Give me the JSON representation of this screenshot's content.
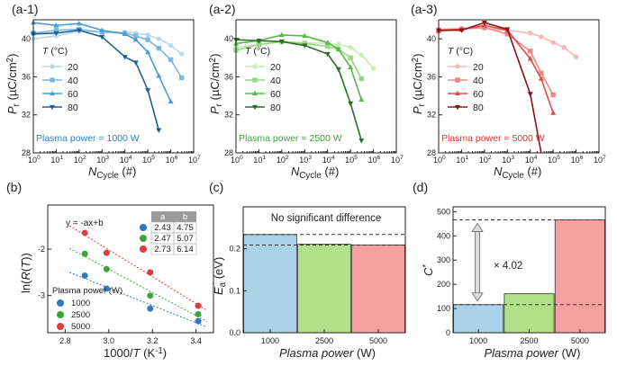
{
  "chart_data": [
    {
      "id": "a1",
      "type": "line",
      "label": "(a-1)",
      "xlabel": "N_Cycle (#)",
      "ylabel": "P_r (µC/cm²)",
      "xscale": "log",
      "xlim": [
        1,
        10000000
      ],
      "ylim": [
        28,
        42
      ],
      "xticks": [
        "10^0",
        "10^1",
        "10^2",
        "10^3",
        "10^4",
        "10^5",
        "10^6",
        "10^7"
      ],
      "yticks": [
        28,
        32,
        36,
        40
      ],
      "legend_title": "T (°C)",
      "annotation": "Plasma power = 1000 W",
      "annotation_color": "#2e7fc1",
      "series": [
        {
          "name": "20",
          "color": "#b9d8ee",
          "marker": "circle",
          "x": [
            1,
            10,
            100,
            1000,
            10000,
            30000,
            100000,
            300000,
            1000000,
            3000000
          ],
          "y": [
            40.0,
            40.3,
            40.8,
            40.7,
            40.7,
            40.6,
            40.4,
            40.0,
            39.3,
            38.4
          ]
        },
        {
          "name": "40",
          "color": "#7cb8e0",
          "marker": "square",
          "x": [
            1,
            10,
            100,
            1000,
            10000,
            30000,
            100000,
            300000,
            1000000,
            3000000
          ],
          "y": [
            40.6,
            40.9,
            41.0,
            40.7,
            40.6,
            40.3,
            39.9,
            39.0,
            37.8,
            35.9
          ]
        },
        {
          "name": "60",
          "color": "#4a9bd2",
          "marker": "triangle",
          "x": [
            1,
            10,
            100,
            1000,
            10000,
            30000,
            100000,
            300000,
            1000000
          ],
          "y": [
            41.7,
            41.4,
            41.6,
            40.9,
            40.5,
            39.9,
            38.6,
            36.1,
            33.4
          ]
        },
        {
          "name": "80",
          "color": "#1f5f96",
          "marker": "triangle-down",
          "x": [
            1,
            10,
            100,
            1000,
            10000,
            30000,
            100000,
            300000
          ],
          "y": [
            40.5,
            40.6,
            40.9,
            40.2,
            38.1,
            37.5,
            34.6,
            30.4
          ]
        }
      ]
    },
    {
      "id": "a2",
      "type": "line",
      "label": "(a-2)",
      "xlabel": "N_Cycle (#)",
      "ylabel": "P_r (µC/cm²)",
      "xscale": "log",
      "xlim": [
        1,
        10000000
      ],
      "ylim": [
        28,
        42
      ],
      "xticks": [
        "10^0",
        "10^1",
        "10^2",
        "10^3",
        "10^4",
        "10^5",
        "10^6",
        "10^7"
      ],
      "yticks": [
        28,
        32,
        36,
        40
      ],
      "legend_title": "T (°C)",
      "annotation": "Plasma power = 2500 W",
      "annotation_color": "#3ca33c",
      "series": [
        {
          "name": "20",
          "color": "#c8ecb4",
          "marker": "circle",
          "x": [
            1,
            10,
            100,
            1000,
            10000,
            30000,
            100000,
            300000,
            1000000
          ],
          "y": [
            39.1,
            39.4,
            39.7,
            39.6,
            39.5,
            39.4,
            39.1,
            38.3,
            36.9
          ]
        },
        {
          "name": "40",
          "color": "#94d880",
          "marker": "square",
          "x": [
            1,
            10,
            100,
            1000,
            10000,
            30000,
            100000,
            300000
          ],
          "y": [
            38.8,
            39.4,
            39.7,
            39.5,
            39.2,
            38.9,
            38.0,
            35.8
          ]
        },
        {
          "name": "60",
          "color": "#56b84a",
          "marker": "triangle",
          "x": [
            1,
            10,
            100,
            1000,
            10000,
            30000,
            100000,
            300000
          ],
          "y": [
            39.5,
            39.8,
            40.4,
            40.3,
            39.6,
            38.9,
            37.0,
            33.6
          ]
        },
        {
          "name": "80",
          "color": "#2a6e26",
          "marker": "triangle-down",
          "x": [
            1,
            10,
            100,
            1000,
            10000,
            30000,
            100000,
            300000
          ],
          "y": [
            39.9,
            39.8,
            39.7,
            39.3,
            38.4,
            36.8,
            33.2,
            29.3
          ]
        }
      ]
    },
    {
      "id": "a3",
      "type": "line",
      "label": "(a-3)",
      "xlabel": "N_Cycle (#)",
      "ylabel": "P_r (µC/cm²)",
      "xscale": "log",
      "xlim": [
        1,
        10000000
      ],
      "ylim": [
        28,
        42
      ],
      "xticks": [
        "10^0",
        "10^1",
        "10^2",
        "10^3",
        "10^4",
        "10^5",
        "10^6",
        "10^7"
      ],
      "yticks": [
        28,
        32,
        36,
        40
      ],
      "legend_title": "T (°C)",
      "annotation": "Plasma power = 5000 W",
      "annotation_color": "#d93636",
      "series": [
        {
          "name": "20",
          "color": "#f4b8b8",
          "marker": "circle",
          "x": [
            1,
            10,
            100,
            1000,
            10000,
            30000,
            100000,
            300000,
            1000000
          ],
          "y": [
            41.0,
            41.1,
            41.1,
            40.9,
            40.6,
            40.2,
            39.6,
            39.1,
            38.1
          ]
        },
        {
          "name": "40",
          "color": "#ea8888",
          "marker": "square",
          "x": [
            1,
            10,
            100,
            1000,
            10000,
            30000,
            100000
          ],
          "y": [
            40.8,
            41.0,
            41.2,
            40.5,
            38.7,
            36.4,
            34.1
          ]
        },
        {
          "name": "60",
          "color": "#dc4a4a",
          "marker": "triangle",
          "x": [
            1,
            10,
            100,
            1000,
            10000,
            30000,
            100000
          ],
          "y": [
            40.9,
            41.0,
            41.4,
            40.9,
            37.9,
            35.8,
            32.2
          ]
        },
        {
          "name": "80",
          "color": "#8e1414",
          "marker": "triangle-down",
          "x": [
            1,
            10,
            100,
            1000,
            10000,
            30000
          ],
          "y": [
            40.9,
            40.9,
            41.7,
            41.0,
            34.2,
            28.0
          ]
        }
      ]
    },
    {
      "id": "b",
      "type": "scatter",
      "label": "(b)",
      "xlabel": "1000/T (K⁻¹)",
      "ylabel": "ln(R(T))",
      "xlim": [
        2.72,
        3.48
      ],
      "ylim": [
        -3.8,
        -1.05
      ],
      "xticks": [
        2.8,
        3.0,
        3.2,
        3.4
      ],
      "yticks": [
        -3,
        -2
      ],
      "equation": "y = -ax+b",
      "legend_title": "Plasma power (W)",
      "table_headers": [
        "a",
        "b"
      ],
      "series": [
        {
          "name": "1000",
          "color": "#2f78c4",
          "x": [
            2.89,
            2.99,
            3.19,
            3.41
          ],
          "y": [
            -2.57,
            -2.85,
            -3.28,
            -3.55
          ],
          "a": "2.43",
          "b": "4.75"
        },
        {
          "name": "2500",
          "color": "#3ca33c",
          "x": [
            2.89,
            2.99,
            3.19,
            3.41
          ],
          "y": [
            -2.1,
            -2.43,
            -3.0,
            -3.4
          ],
          "a": "2.47",
          "b": "5.07"
        },
        {
          "name": "5000",
          "color": "#e03a3a",
          "x": [
            2.89,
            2.99,
            3.19,
            3.41
          ],
          "y": [
            -1.65,
            -2.08,
            -2.5,
            -3.22
          ],
          "a": "2.73",
          "b": "6.14"
        }
      ]
    },
    {
      "id": "c",
      "type": "bar",
      "label": "(c)",
      "xlabel": "Plasma power (W)",
      "ylabel": "E_a (eV)",
      "categories": [
        "1000",
        "2500",
        "5000"
      ],
      "values": [
        0.234,
        0.211,
        0.209
      ],
      "colors": [
        "#a9d1e8",
        "#b2e08a",
        "#f8a0a0"
      ],
      "ylim": [
        0,
        0.3
      ],
      "yticks": [
        0.0,
        0.1,
        0.2
      ],
      "annotation": "No significant difference"
    },
    {
      "id": "d",
      "type": "bar",
      "label": "(d)",
      "xlabel": "Plasma power (W)",
      "ylabel": "C*",
      "categories": [
        "1000",
        "2500",
        "5000"
      ],
      "values": [
        116,
        161,
        466
      ],
      "colors": [
        "#a9d1e8",
        "#b2e08a",
        "#f8a0a0"
      ],
      "ylim": [
        0,
        520
      ],
      "yticks": [
        0,
        100,
        200,
        300,
        400,
        500
      ],
      "annotation": "× 4.02"
    }
  ]
}
